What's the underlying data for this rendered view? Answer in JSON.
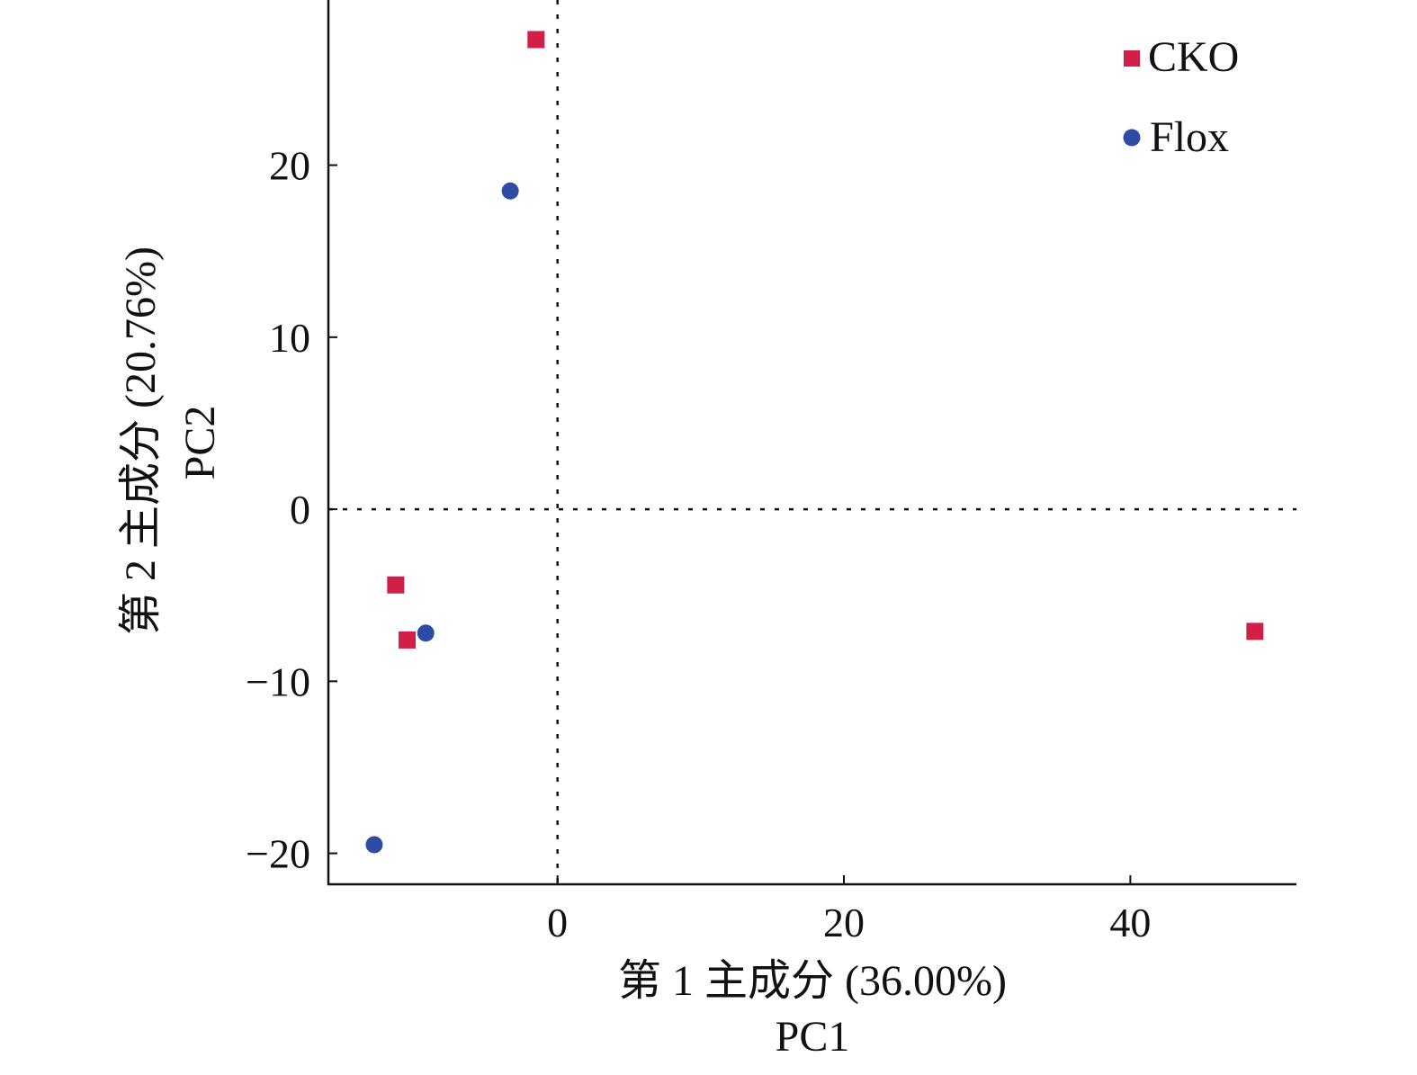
{
  "chart_data": {
    "type": "scatter",
    "title": "",
    "xlabel": "第 1 主成分 (36.00%)",
    "xlabel_sub": "PC1",
    "ylabel": "第 2 主成分 (20.76%)",
    "ylabel_sub": "PC2",
    "xlim": [
      -16,
      51.6
    ],
    "ylim": [
      -21.8,
      29.6
    ],
    "xticks": [
      0,
      20,
      40
    ],
    "yticks": [
      -20,
      -10,
      0,
      10,
      20
    ],
    "xtick_labels": [
      "0",
      "20",
      "40"
    ],
    "ytick_labels": [
      "−20",
      "−10",
      "0",
      "10",
      "20"
    ],
    "grid": false,
    "reference_lines": {
      "x": 0,
      "y": 0,
      "style": "dotted"
    },
    "legend_position": "top-right",
    "series": [
      {
        "name": "CKO",
        "marker": "square",
        "color": "#d21f47",
        "points": [
          [
            -1.5,
            27.3
          ],
          [
            -11.3,
            -4.4
          ],
          [
            -10.5,
            -7.6
          ],
          [
            48.7,
            -7.1
          ]
        ]
      },
      {
        "name": "Flox",
        "marker": "circle",
        "color": "#2e4ca6",
        "points": [
          [
            -3.3,
            18.5
          ],
          [
            -9.2,
            -7.2
          ],
          [
            -12.8,
            -19.5
          ]
        ]
      }
    ]
  }
}
